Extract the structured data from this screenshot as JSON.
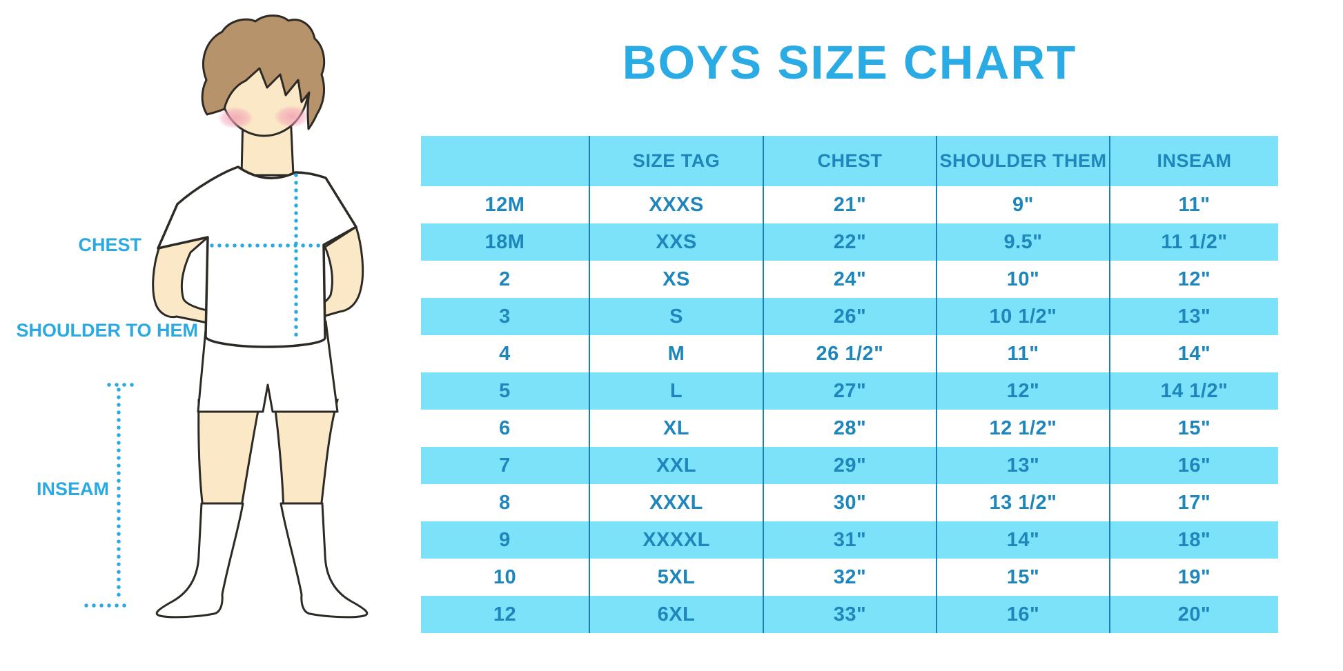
{
  "chart_data": {
    "type": "table",
    "title": "BOYS SIZE CHART",
    "columns": [
      "",
      "SIZE TAG",
      "CHEST",
      "SHOULDER THEM",
      "INSEAM"
    ],
    "rows": [
      [
        "12M",
        "XXXS",
        "21\"",
        "9\"",
        "11\""
      ],
      [
        "18M",
        "XXS",
        "22\"",
        "9.5\"",
        "11 1/2\""
      ],
      [
        "2",
        "XS",
        "24\"",
        "10\"",
        "12\""
      ],
      [
        "3",
        "S",
        "26\"",
        "10 1/2\"",
        "13\""
      ],
      [
        "4",
        "M",
        "26 1/2\"",
        "11\"",
        "14\""
      ],
      [
        "5",
        "L",
        "27\"",
        "12\"",
        "14 1/2\""
      ],
      [
        "6",
        "XL",
        "28\"",
        "12 1/2\"",
        "15\""
      ],
      [
        "7",
        "XXL",
        "29\"",
        "13\"",
        "16\""
      ],
      [
        "8",
        "XXXL",
        "30\"",
        "13 1/2\"",
        "17\""
      ],
      [
        "9",
        "XXXXL",
        "31\"",
        "14\"",
        "18\""
      ],
      [
        "10",
        "5XL",
        "32\"",
        "15\"",
        "19\""
      ],
      [
        "12",
        "6XL",
        "33\"",
        "16\"",
        "20\""
      ]
    ],
    "layout": {
      "banded_rows": true,
      "band_pattern": "header and even rows light blue",
      "grid": "vertical dividers only"
    }
  },
  "figure": {
    "labels": {
      "chest": "CHEST",
      "shoulder_to_hem": "SHOULDER TO HEM",
      "inseam": "INSEAM"
    }
  },
  "colors": {
    "accent_blue": "#2babe4",
    "band_blue": "#7be2f9",
    "divider_blue": "#1a80b4",
    "table_text_blue": "#1e86bb",
    "measure_dot_blue": "#2aa9e2"
  }
}
